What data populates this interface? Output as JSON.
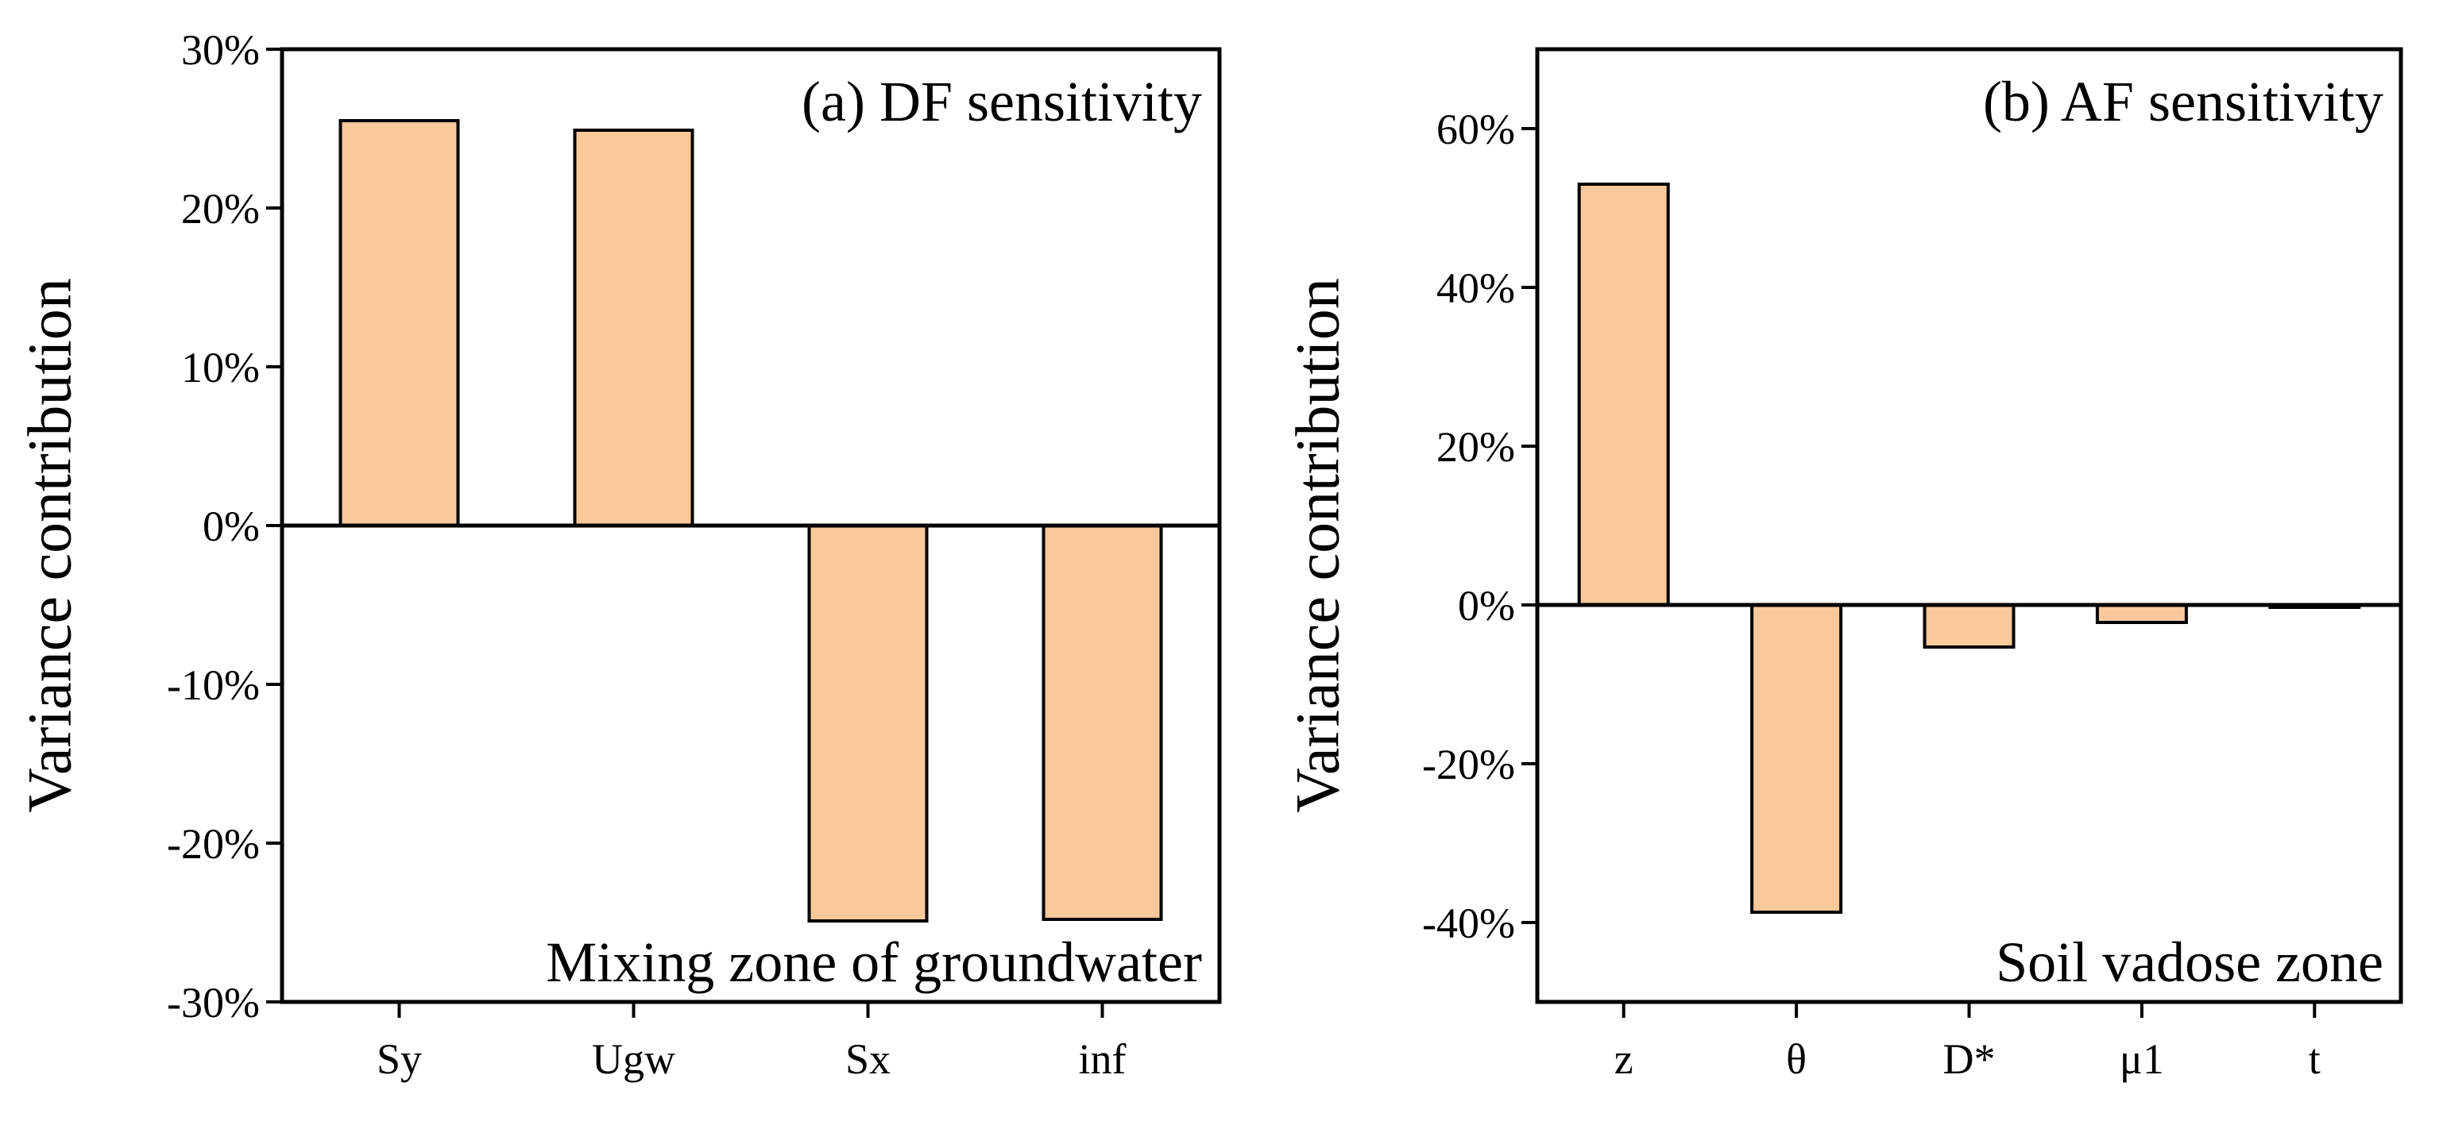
{
  "chart_data": [
    {
      "type": "bar",
      "title": "(a) DF sensitivity",
      "annotation": "Mixing zone of groundwater",
      "xlabel": "",
      "ylabel": "Variance contribution",
      "categories": [
        "Sy",
        "Ugw",
        "Sx",
        "inf"
      ],
      "values": [
        25.5,
        24.9,
        -24.9,
        -24.8
      ],
      "ylim": [
        -30,
        30
      ],
      "yticks": [
        -30,
        -20,
        -10,
        0,
        10,
        20,
        30
      ],
      "ytick_labels": [
        "-30%",
        "-20%",
        "-10%",
        "0%",
        "10%",
        "20%",
        "30%"
      ],
      "grid": false,
      "legend": "none",
      "bar_color": "#F9C89B",
      "edge_color": "#000000"
    },
    {
      "type": "bar",
      "title": "(b) AF sensitivity",
      "annotation": "Soil vadose zone",
      "xlabel": "",
      "ylabel": "Variance contribution",
      "categories": [
        "z",
        "θ",
        "D*",
        "μ1",
        "t"
      ],
      "values": [
        53,
        -38.7,
        -5.3,
        -2.2,
        -0.2
      ],
      "ylim": [
        -50,
        70
      ],
      "yticks": [
        -40,
        -20,
        0,
        20,
        40,
        60
      ],
      "ytick_labels": [
        "-40%",
        "-20%",
        "0%",
        "20%",
        "40%",
        "60%"
      ],
      "grid": false,
      "legend": "none",
      "bar_color": "#F9C89B",
      "edge_color": "#000000"
    }
  ]
}
